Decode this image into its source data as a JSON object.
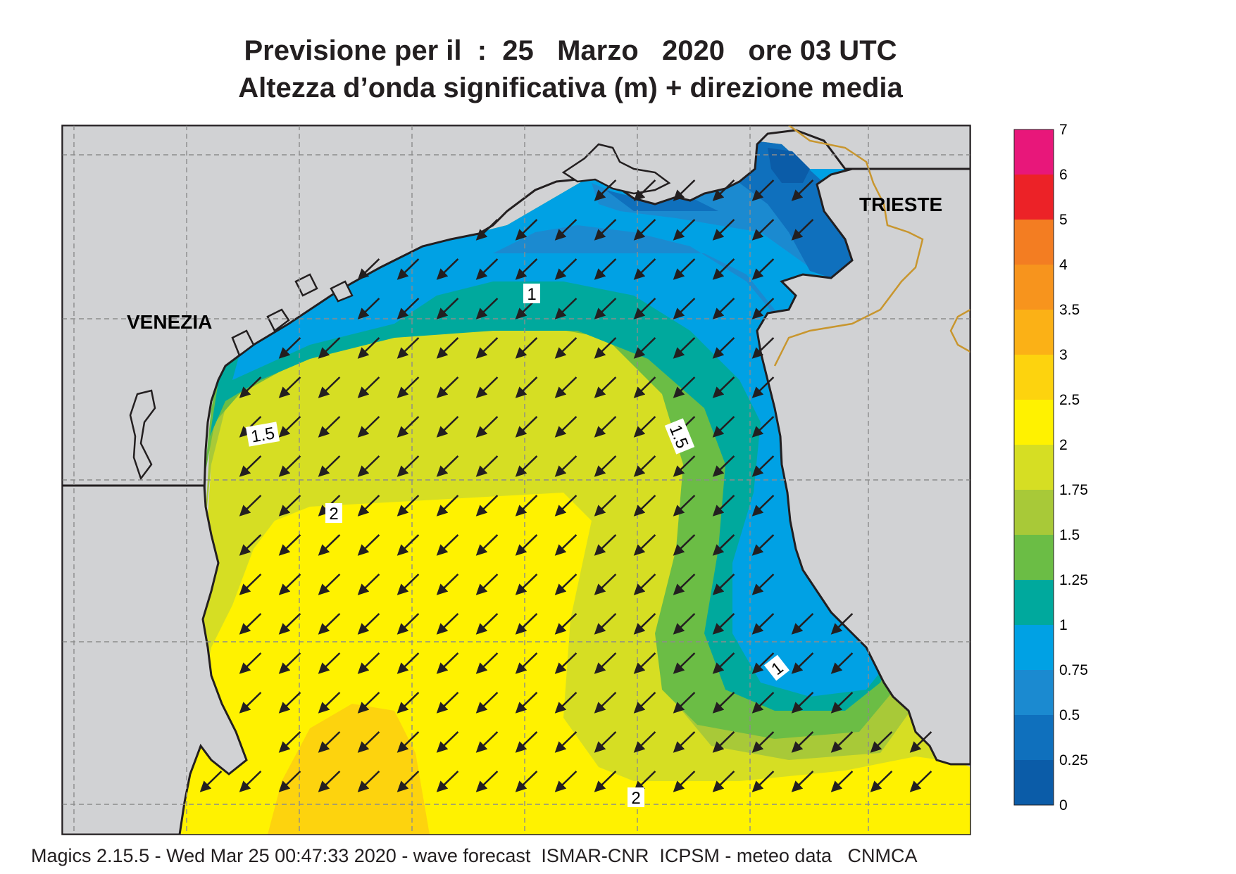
{
  "title": {
    "line1": "Previsione per il  :  25   Marzo   2020   ore 03 UTC",
    "line2": "Altezza d’onda significativa (m) + direzione media"
  },
  "footer": "Magics 2.15.5 - Wed Mar 25 00:47:33 2020 - wave forecast  ISMAR-CNR  ICPSM - meteo data   CNMCA",
  "places": {
    "venezia": "VENEZIA",
    "trieste": "TRIESTE"
  },
  "contour_labels": [
    "1",
    "1.5",
    "2",
    "1.5",
    "1",
    "2"
  ],
  "colorbar": {
    "ticks": [
      "7",
      "6",
      "5",
      "4",
      "3.5",
      "3",
      "2.5",
      "2",
      "1.75",
      "1.5",
      "1.25",
      "1",
      "0.75",
      "0.5",
      "0.25",
      "0"
    ],
    "colors": [
      "#e8177a",
      "#ec2227",
      "#f37d22",
      "#f7941d",
      "#fbb116",
      "#fdd30e",
      "#fff200",
      "#d6de23",
      "#a8c938",
      "#6bbd45",
      "#00a99d",
      "#00a1e4",
      "#1b8ad0",
      "#0f70bd",
      "#0b5ca8"
    ]
  },
  "colors": {
    "land": "#d1d2d4",
    "border": "#c8962e",
    "arrow": "#231f20"
  },
  "wave_direction": "south-west"
}
